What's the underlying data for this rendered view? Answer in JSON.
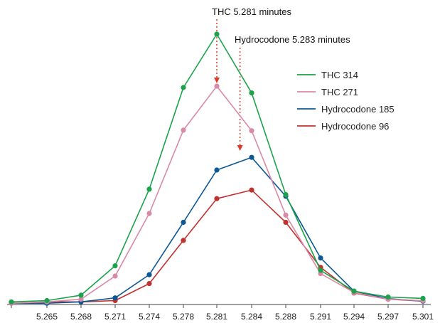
{
  "chart_data": {
    "type": "line",
    "title": "",
    "xlabel": "",
    "ylabel": "",
    "x": [
      5.262,
      5.265,
      5.268,
      5.271,
      5.274,
      5.278,
      5.281,
      5.284,
      5.288,
      5.291,
      5.294,
      5.297,
      5.301
    ],
    "x_ticks": [
      "5.265",
      "5.268",
      "5.271",
      "5.274",
      "5.278",
      "5.281",
      "5.284",
      "5.288",
      "5.291",
      "5.294",
      "5.297",
      "5.301"
    ],
    "xlim": [
      5.262,
      5.301
    ],
    "ylim": [
      0,
      100
    ],
    "grid": false,
    "legend_position": "top-right",
    "series": [
      {
        "name": "THC 314",
        "color": "#1aa34a",
        "values": [
          0.7,
          1.2,
          3.2,
          14.1,
          42.5,
          80.2,
          100,
          78.2,
          40.5,
          12.4,
          4.7,
          2.5,
          2.0
        ]
      },
      {
        "name": "THC 271",
        "color": "#d98aa6",
        "values": [
          0.2,
          0.7,
          1.7,
          10.3,
          33.5,
          64.4,
          80.7,
          64.2,
          32.9,
          11.2,
          4.2,
          1.7,
          1.2
        ]
      },
      {
        "name": "Hydrocodone 185",
        "color": "#0c5894",
        "values": [
          0.2,
          0.2,
          0.7,
          2.2,
          10.8,
          30.2,
          49.6,
          54.3,
          39.9,
          17.0,
          4.7,
          1.9,
          1.0
        ]
      },
      {
        "name": "Hydrocodone 96",
        "color": "#c0322f",
        "values": [
          0.2,
          0.7,
          0.7,
          1.2,
          7.5,
          23.5,
          39.0,
          42.2,
          30.2,
          13.5,
          4.0,
          1.7,
          1.0
        ]
      }
    ],
    "annotations": [
      {
        "label": "THC 5.281 minutes",
        "x": 5.281,
        "color": "#e03a2a"
      },
      {
        "label": "Hydrocodone 5.283 minutes",
        "x": 5.283,
        "color": "#e03a2a"
      }
    ]
  }
}
